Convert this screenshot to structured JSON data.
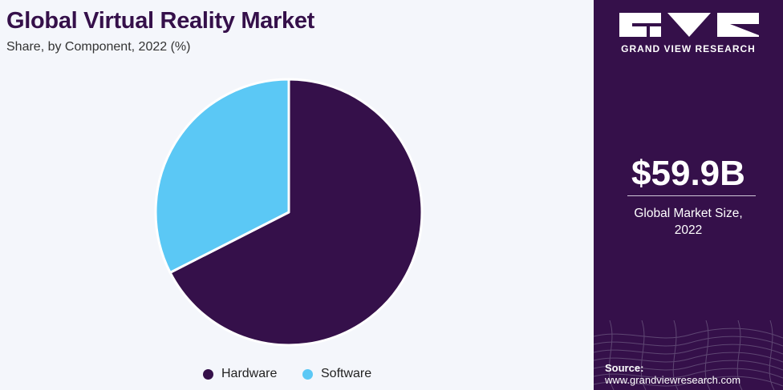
{
  "header": {
    "title": "Global Virtual Reality Market",
    "subtitle": "Share, by Component, 2022 (%)"
  },
  "chart_data": {
    "type": "pie",
    "title": "Global Virtual Reality Market",
    "subtitle": "Share, by Component, 2022 (%)",
    "categories": [
      "Hardware",
      "Software"
    ],
    "values": [
      67.5,
      32.5
    ],
    "colors": [
      "#35104a",
      "#5bc8f5"
    ],
    "legend_position": "bottom-center"
  },
  "legend": {
    "items": [
      {
        "label": "Hardware",
        "color": "#35104a"
      },
      {
        "label": "Software",
        "color": "#5bc8f5"
      }
    ]
  },
  "sidebar": {
    "brand": "GRAND VIEW RESEARCH",
    "logo_icon": "gvr-logo-icon",
    "market_size": "$59.9B",
    "market_label_line1": "Global Market Size,",
    "market_label_line2": "2022",
    "source_label": "Source:",
    "source_url": "www.grandviewresearch.com",
    "background_color": "#35104a"
  }
}
